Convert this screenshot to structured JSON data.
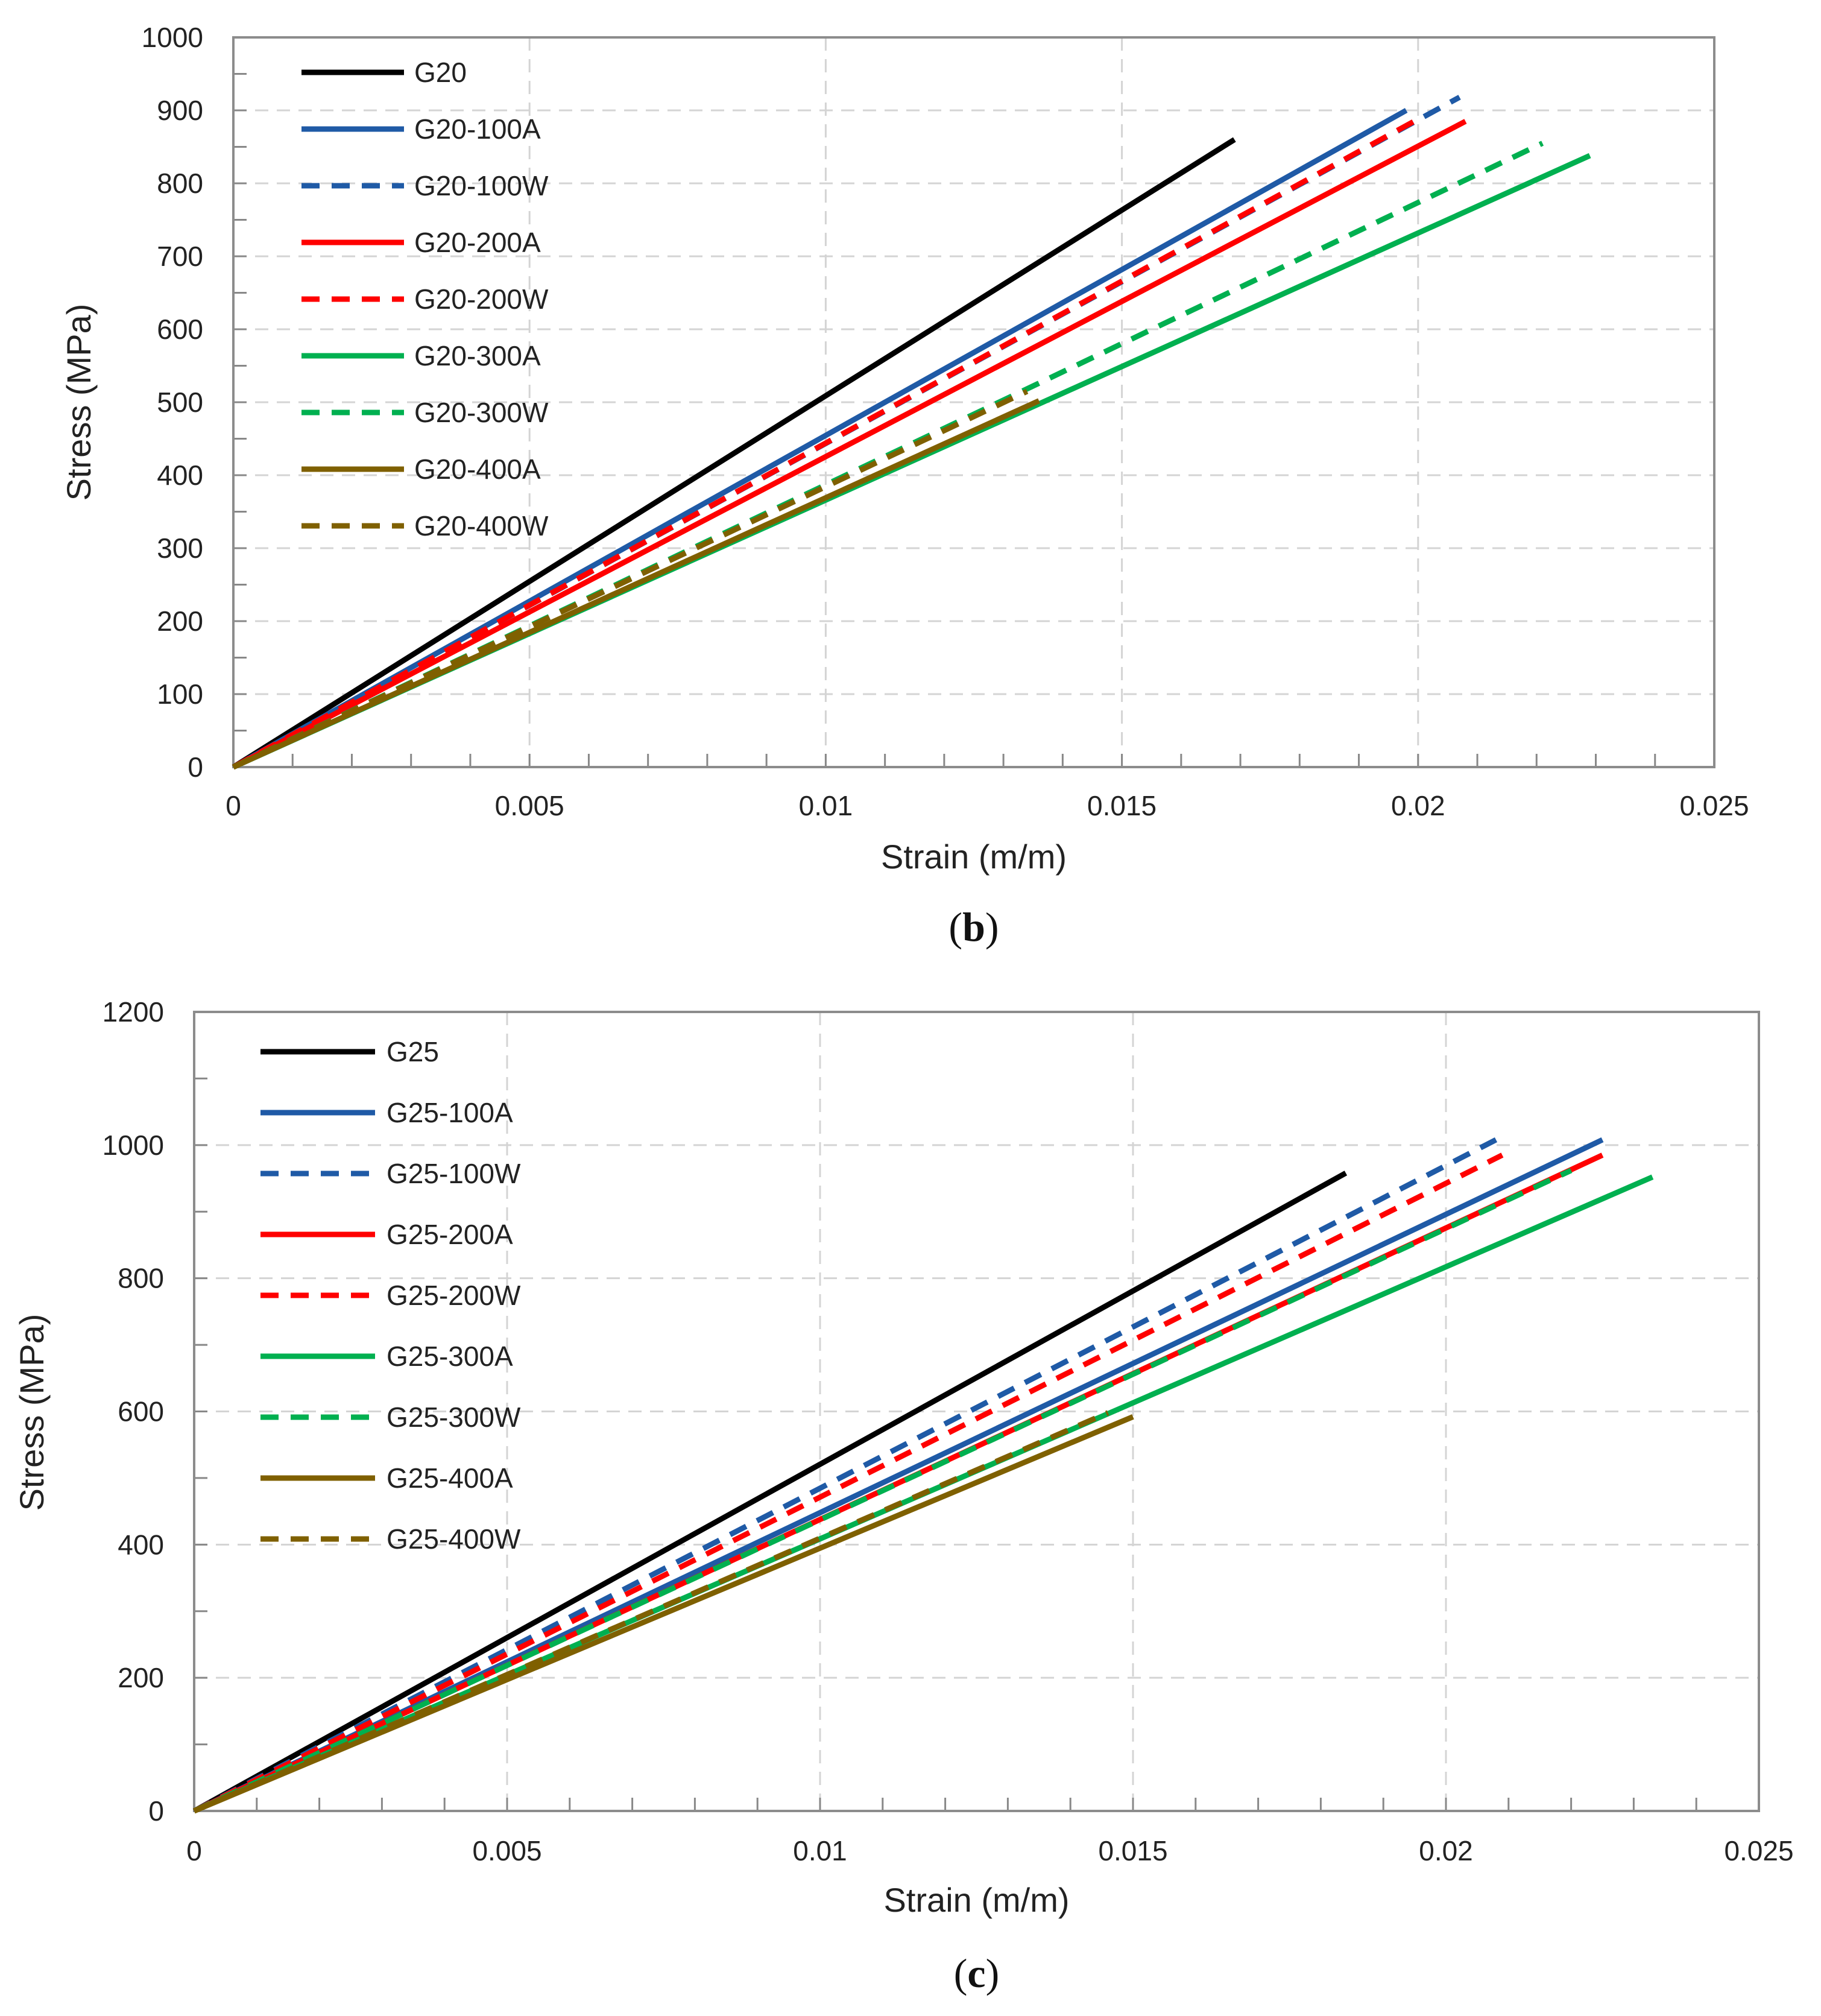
{
  "chart_data": [
    {
      "type": "line",
      "caption_letter": "b",
      "caption_open": "(",
      "caption_close": ")",
      "xlabel": "Strain (m/m)",
      "ylabel": "Stress (MPa)",
      "xlim": [
        0,
        0.025
      ],
      "ylim": [
        0,
        1000
      ],
      "xticks": [
        0,
        0.005,
        0.01,
        0.015,
        0.02,
        0.025
      ],
      "xtick_labels": [
        "0",
        "0.005",
        "0.01",
        "0.015",
        "0.02",
        "0.025"
      ],
      "yticks": [
        0,
        100,
        200,
        300,
        400,
        500,
        600,
        700,
        800,
        900,
        1000
      ],
      "ytick_labels": [
        "0",
        "100",
        "200",
        "300",
        "400",
        "500",
        "600",
        "700",
        "800",
        "900",
        "1000"
      ],
      "grid": true,
      "legend_position": "top-left",
      "series": [
        {
          "name": "G20",
          "color": "#000000",
          "dash": "solid",
          "x": [
            0,
            0.0169
          ],
          "y": [
            0,
            860
          ]
        },
        {
          "name": "G20-100A",
          "color": "#1F5AA6",
          "dash": "solid",
          "x": [
            0,
            0.0198
          ],
          "y": [
            0,
            900
          ]
        },
        {
          "name": "G20-100W",
          "color": "#1F5AA6",
          "dash": "dashed",
          "x": [
            0,
            0.0207
          ],
          "y": [
            0,
            918
          ]
        },
        {
          "name": "G20-200A",
          "color": "#FF0000",
          "dash": "solid",
          "x": [
            0,
            0.0208
          ],
          "y": [
            0,
            885
          ]
        },
        {
          "name": "G20-200W",
          "color": "#FF0000",
          "dash": "dashed",
          "x": [
            0,
            0.02
          ],
          "y": [
            0,
            888
          ]
        },
        {
          "name": "G20-300A",
          "color": "#00B050",
          "dash": "solid",
          "x": [
            0,
            0.0229
          ],
          "y": [
            0,
            838
          ]
        },
        {
          "name": "G20-300W",
          "color": "#00B050",
          "dash": "dashed",
          "x": [
            0,
            0.0221
          ],
          "y": [
            0,
            855
          ]
        },
        {
          "name": "G20-400A",
          "color": "#7F6000",
          "dash": "solid",
          "x": [
            0,
            0.0136
          ],
          "y": [
            0,
            502
          ]
        },
        {
          "name": "G20-400W",
          "color": "#7F6000",
          "dash": "dashed",
          "x": [
            0,
            0.0134
          ],
          "y": [
            0,
            515
          ]
        }
      ]
    },
    {
      "type": "line",
      "caption_letter": "c",
      "caption_open": "(",
      "caption_close": ")",
      "xlabel": "Strain (m/m)",
      "ylabel": "Stress (MPa)",
      "xlim": [
        0,
        0.025
      ],
      "ylim": [
        0,
        1200
      ],
      "xticks": [
        0,
        0.005,
        0.01,
        0.015,
        0.02,
        0.025
      ],
      "xtick_labels": [
        "0",
        "0.005",
        "0.01",
        "0.015",
        "0.02",
        "0.025"
      ],
      "yticks": [
        0,
        200,
        400,
        600,
        800,
        1000,
        1200
      ],
      "ytick_labels": [
        "0",
        "200",
        "400",
        "600",
        "800",
        "1000",
        "1200"
      ],
      "grid": true,
      "legend_position": "top-left",
      "series": [
        {
          "name": "G25",
          "color": "#000000",
          "dash": "solid",
          "x": [
            0,
            0.0184
          ],
          "y": [
            0,
            958
          ]
        },
        {
          "name": "G25-100A",
          "color": "#1F5AA6",
          "dash": "solid",
          "x": [
            0,
            0.0225
          ],
          "y": [
            0,
            1008
          ]
        },
        {
          "name": "G25-100W",
          "color": "#1F5AA6",
          "dash": "dashed",
          "x": [
            0,
            0.0208
          ],
          "y": [
            0,
            1008
          ]
        },
        {
          "name": "G25-200A",
          "color": "#FF0000",
          "dash": "solid",
          "x": [
            0,
            0.0225
          ],
          "y": [
            0,
            985
          ]
        },
        {
          "name": "G25-200W",
          "color": "#FF0000",
          "dash": "dashed",
          "x": [
            0,
            0.0209
          ],
          "y": [
            0,
            985
          ]
        },
        {
          "name": "G25-300A",
          "color": "#00B050",
          "dash": "solid",
          "x": [
            0,
            0.0233
          ],
          "y": [
            0,
            952
          ]
        },
        {
          "name": "G25-300W",
          "color": "#00B050",
          "dash": "dashed",
          "x": [
            0,
            0.022
          ],
          "y": [
            0,
            962
          ]
        },
        {
          "name": "G25-400A",
          "color": "#7F6000",
          "dash": "solid",
          "x": [
            0,
            0.015
          ],
          "y": [
            0,
            592
          ]
        },
        {
          "name": "G25-400W",
          "color": "#7F6000",
          "dash": "dashed",
          "x": [
            0,
            0.0146
          ],
          "y": [
            0,
            598
          ]
        }
      ]
    }
  ]
}
